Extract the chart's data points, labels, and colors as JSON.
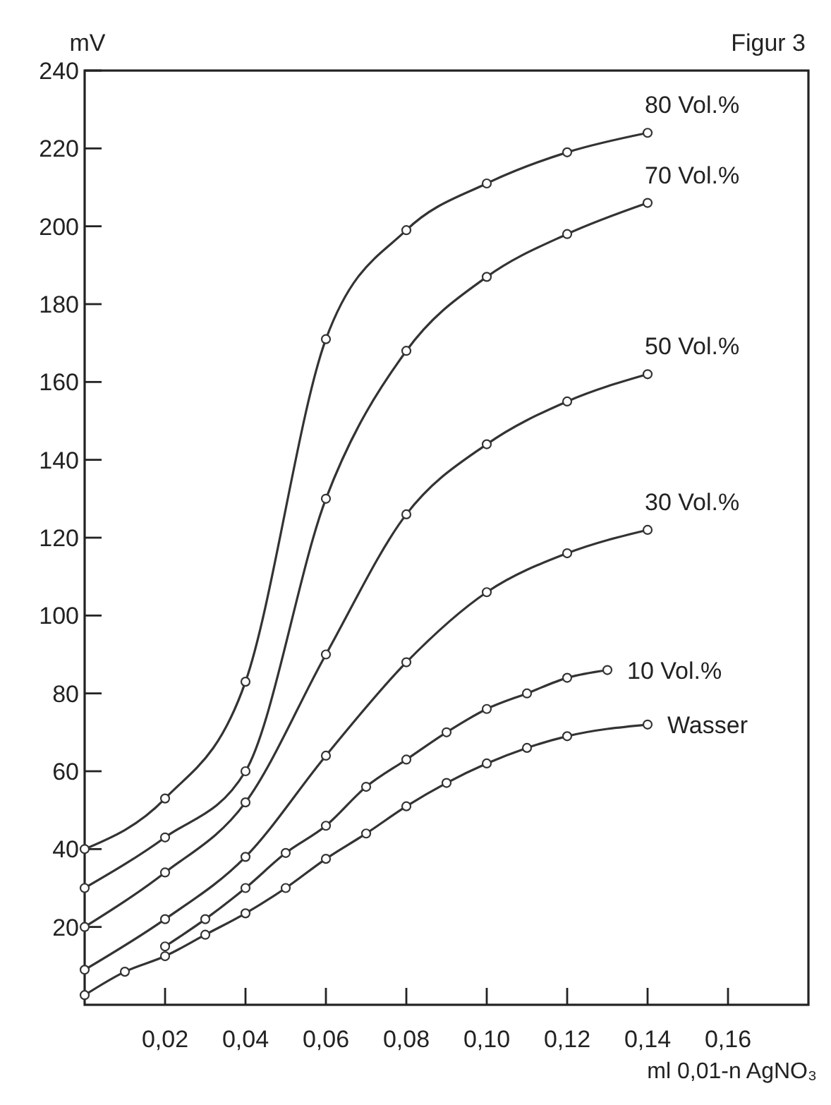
{
  "chart_data": {
    "type": "line",
    "title": "Figur 3",
    "xlabel": "ml 0,01-n AgNO₃",
    "ylabel": "mV",
    "xlim": [
      0,
      0.18
    ],
    "ylim": [
      0,
      240
    ],
    "xticks": [
      {
        "value": 0.02,
        "label": "0,02"
      },
      {
        "value": 0.04,
        "label": "0,04"
      },
      {
        "value": 0.06,
        "label": "0,06"
      },
      {
        "value": 0.08,
        "label": "0,08"
      },
      {
        "value": 0.1,
        "label": "0,10"
      },
      {
        "value": 0.12,
        "label": "0,12"
      },
      {
        "value": 0.14,
        "label": "0,14"
      },
      {
        "value": 0.16,
        "label": "0,16"
      }
    ],
    "yticks": [
      20,
      40,
      60,
      80,
      100,
      120,
      140,
      160,
      180,
      200,
      220,
      240
    ],
    "marker": "circle",
    "line_style": "solid",
    "grid": false,
    "series": [
      {
        "name": "80 Vol.%",
        "color": "#333333",
        "x": [
          0,
          0.02,
          0.04,
          0.06,
          0.08,
          0.1,
          0.12,
          0.14
        ],
        "values": [
          40,
          53,
          83,
          171,
          199,
          211,
          219,
          224
        ]
      },
      {
        "name": "70 Vol.%",
        "color": "#333333",
        "x": [
          0,
          0.02,
          0.04,
          0.06,
          0.08,
          0.1,
          0.12,
          0.14
        ],
        "values": [
          30,
          43,
          60,
          130,
          168,
          187,
          198,
          206
        ]
      },
      {
        "name": "50 Vol.%",
        "color": "#333333",
        "x": [
          0,
          0.02,
          0.04,
          0.06,
          0.08,
          0.1,
          0.12,
          0.14
        ],
        "values": [
          20,
          34,
          52,
          90,
          126,
          144,
          155,
          162
        ]
      },
      {
        "name": "30 Vol.%",
        "color": "#333333",
        "x": [
          0,
          0.02,
          0.04,
          0.06,
          0.08,
          0.1,
          0.12,
          0.14
        ],
        "values": [
          9,
          22,
          38,
          64,
          88,
          106,
          116,
          122
        ]
      },
      {
        "name": "10 Vol.%",
        "color": "#333333",
        "x": [
          0.02,
          0.03,
          0.04,
          0.05,
          0.06,
          0.07,
          0.08,
          0.09,
          0.1,
          0.11,
          0.12,
          0.13
        ],
        "values": [
          15,
          22,
          30,
          39,
          46,
          56,
          63,
          70,
          76,
          80,
          84,
          86
        ]
      },
      {
        "name": "Wasser",
        "color": "#333333",
        "x": [
          0,
          0.01,
          0.02,
          0.03,
          0.04,
          0.05,
          0.06,
          0.07,
          0.08,
          0.09,
          0.1,
          0.11,
          0.12,
          0.14
        ],
        "values": [
          2.5,
          8.5,
          12.5,
          18,
          23.5,
          30,
          37.5,
          44,
          51,
          57,
          62,
          66,
          69,
          72
        ]
      }
    ]
  }
}
